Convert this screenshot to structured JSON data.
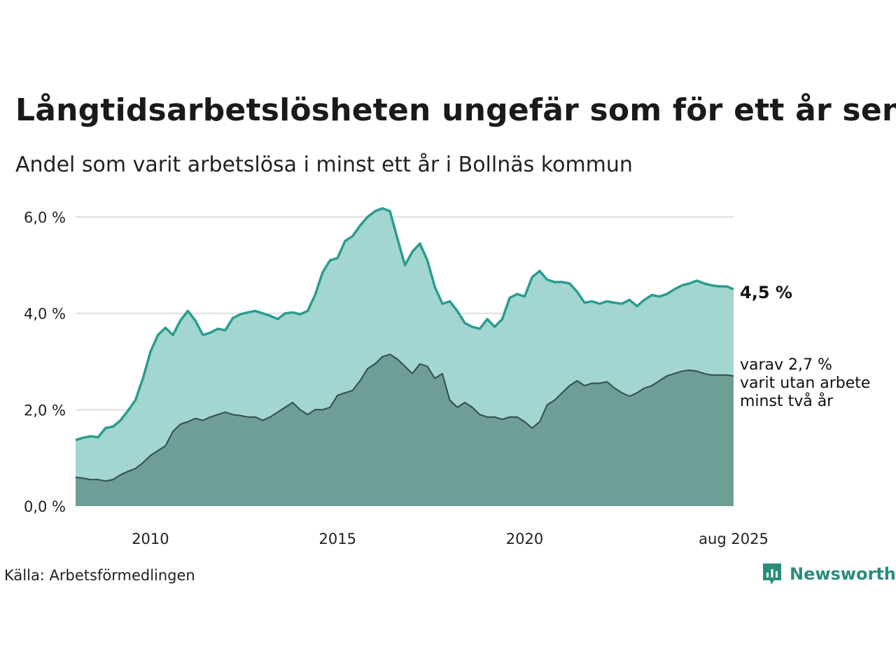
{
  "title": "Långtidsarbetslösheten ungefär som för ett år sen",
  "subtitle": "Andel som varit arbetslösa i minst ett år i Bollnäs kommun",
  "source": "Källa: Arbetsförmedlingen",
  "brand": {
    "name": "Newsworthy",
    "icon": "newsworthy-logo-icon"
  },
  "colors": {
    "total_line": "#2a9d8f",
    "total_area": "#a3d6d0",
    "sub_line": "#2f4f48",
    "sub_area": "#6f9e96",
    "grid": "#dddddd"
  },
  "chart_data": {
    "type": "area",
    "y_ticks": [
      "0,0 %",
      "2,0 %",
      "4,0 %",
      "6,0 %"
    ],
    "x_ticks": [
      "2010",
      "2015",
      "2020",
      "aug 2025"
    ],
    "ylim": [
      0,
      6.5
    ],
    "x_range": [
      2008.0,
      2025.583
    ],
    "grid": true,
    "end_label_total": "4,5 %",
    "end_label_sub": [
      "varav 2,7 %",
      "varit utan arbete",
      "minst två år"
    ],
    "series": [
      {
        "key": "total",
        "x": [
          2008.0,
          2008.2,
          2008.4,
          2008.6,
          2008.8,
          2009.0,
          2009.2,
          2009.4,
          2009.6,
          2009.8,
          2010.0,
          2010.2,
          2010.4,
          2010.6,
          2010.8,
          2011.0,
          2011.2,
          2011.4,
          2011.6,
          2011.8,
          2012.0,
          2012.2,
          2012.4,
          2012.6,
          2012.8,
          2013.0,
          2013.2,
          2013.4,
          2013.6,
          2013.8,
          2014.0,
          2014.2,
          2014.4,
          2014.6,
          2014.8,
          2015.0,
          2015.2,
          2015.4,
          2015.6,
          2015.8,
          2016.0,
          2016.2,
          2016.4,
          2016.6,
          2016.8,
          2017.0,
          2017.2,
          2017.4,
          2017.6,
          2017.8,
          2018.0,
          2018.2,
          2018.4,
          2018.6,
          2018.8,
          2019.0,
          2019.2,
          2019.4,
          2019.6,
          2019.8,
          2020.0,
          2020.2,
          2020.4,
          2020.6,
          2020.8,
          2021.0,
          2021.2,
          2021.4,
          2021.6,
          2021.8,
          2022.0,
          2022.2,
          2022.4,
          2022.6,
          2022.8,
          2023.0,
          2023.2,
          2023.4,
          2023.6,
          2023.8,
          2024.0,
          2024.2,
          2024.4,
          2024.6,
          2024.8,
          2025.0,
          2025.2,
          2025.4,
          2025.583
        ],
        "values": [
          1.37,
          1.42,
          1.45,
          1.43,
          1.62,
          1.65,
          1.78,
          1.98,
          2.2,
          2.65,
          3.2,
          3.55,
          3.7,
          3.55,
          3.85,
          4.05,
          3.85,
          3.55,
          3.6,
          3.68,
          3.65,
          3.9,
          3.98,
          4.02,
          4.05,
          4.0,
          3.95,
          3.88,
          4.0,
          4.02,
          3.98,
          4.05,
          4.38,
          4.85,
          5.1,
          5.15,
          5.5,
          5.6,
          5.82,
          6.0,
          6.12,
          6.18,
          6.12,
          5.55,
          5.0,
          5.28,
          5.45,
          5.1,
          4.55,
          4.2,
          4.25,
          4.05,
          3.8,
          3.72,
          3.68,
          3.88,
          3.72,
          3.88,
          4.32,
          4.4,
          4.35,
          4.75,
          4.88,
          4.7,
          4.65,
          4.65,
          4.62,
          4.45,
          4.22,
          4.25,
          4.2,
          4.25,
          4.22,
          4.2,
          4.28,
          4.15,
          4.28,
          4.38,
          4.35,
          4.4,
          4.5,
          4.58,
          4.62,
          4.68,
          4.62,
          4.58,
          4.56,
          4.56,
          4.5
        ]
      },
      {
        "key": "sub",
        "x": [
          2008.0,
          2008.2,
          2008.4,
          2008.6,
          2008.8,
          2009.0,
          2009.2,
          2009.4,
          2009.6,
          2009.8,
          2010.0,
          2010.2,
          2010.4,
          2010.6,
          2010.8,
          2011.0,
          2011.2,
          2011.4,
          2011.6,
          2011.8,
          2012.0,
          2012.2,
          2012.4,
          2012.6,
          2012.8,
          2013.0,
          2013.2,
          2013.4,
          2013.6,
          2013.8,
          2014.0,
          2014.2,
          2014.4,
          2014.6,
          2014.8,
          2015.0,
          2015.2,
          2015.4,
          2015.6,
          2015.8,
          2016.0,
          2016.2,
          2016.4,
          2016.6,
          2016.8,
          2017.0,
          2017.2,
          2017.4,
          2017.6,
          2017.8,
          2018.0,
          2018.2,
          2018.4,
          2018.6,
          2018.8,
          2019.0,
          2019.2,
          2019.4,
          2019.6,
          2019.8,
          2020.0,
          2020.2,
          2020.4,
          2020.6,
          2020.8,
          2021.0,
          2021.2,
          2021.4,
          2021.6,
          2021.8,
          2022.0,
          2022.2,
          2022.4,
          2022.6,
          2022.8,
          2023.0,
          2023.2,
          2023.4,
          2023.6,
          2023.8,
          2024.0,
          2024.2,
          2024.4,
          2024.6,
          2024.8,
          2025.0,
          2025.2,
          2025.4,
          2025.583
        ],
        "values": [
          0.6,
          0.58,
          0.55,
          0.55,
          0.52,
          0.55,
          0.65,
          0.72,
          0.78,
          0.9,
          1.05,
          1.15,
          1.25,
          1.55,
          1.7,
          1.75,
          1.82,
          1.78,
          1.85,
          1.9,
          1.95,
          1.9,
          1.88,
          1.85,
          1.85,
          1.78,
          1.85,
          1.95,
          2.05,
          2.15,
          2.0,
          1.9,
          2.0,
          2.0,
          2.05,
          2.3,
          2.35,
          2.4,
          2.6,
          2.85,
          2.95,
          3.1,
          3.15,
          3.05,
          2.9,
          2.75,
          2.95,
          2.9,
          2.65,
          2.75,
          2.2,
          2.05,
          2.15,
          2.05,
          1.9,
          1.85,
          1.85,
          1.8,
          1.85,
          1.85,
          1.75,
          1.62,
          1.75,
          2.1,
          2.2,
          2.35,
          2.5,
          2.6,
          2.5,
          2.55,
          2.55,
          2.58,
          2.45,
          2.35,
          2.28,
          2.35,
          2.45,
          2.5,
          2.6,
          2.7,
          2.75,
          2.8,
          2.82,
          2.8,
          2.75,
          2.72,
          2.72,
          2.72,
          2.7
        ]
      }
    ]
  }
}
